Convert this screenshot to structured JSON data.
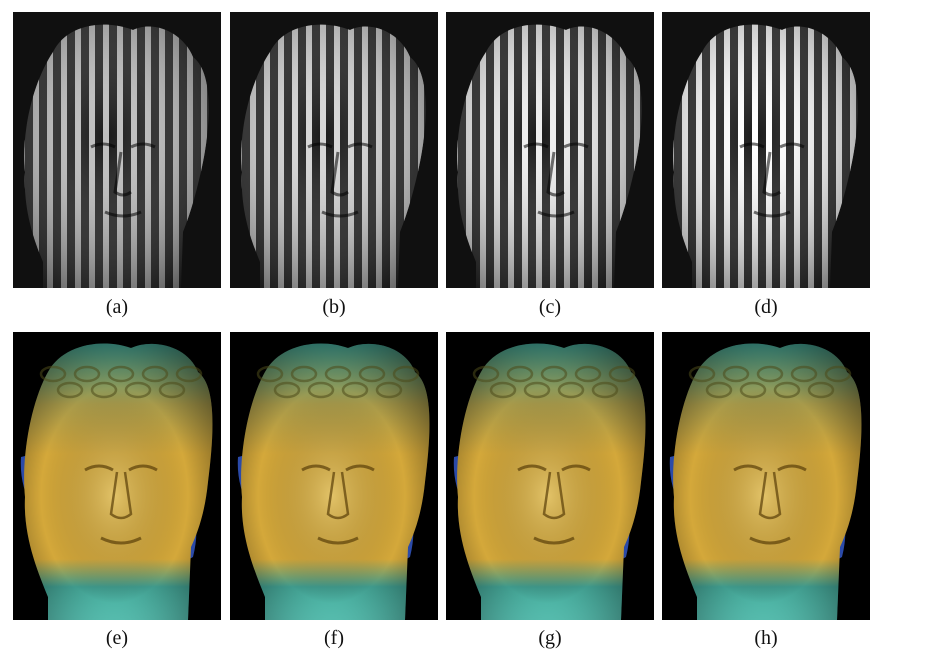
{
  "figure": {
    "row_top": {
      "panels": [
        {
          "caption": "(a)",
          "stripe_brightness": 0.55
        },
        {
          "caption": "(b)",
          "stripe_brightness": 0.72
        },
        {
          "caption": "(c)",
          "stripe_brightness": 0.88
        },
        {
          "caption": "(d)",
          "stripe_brightness": 1.0
        }
      ]
    },
    "row_bottom": {
      "panels": [
        {
          "caption": "(e)"
        },
        {
          "caption": "(f)"
        },
        {
          "caption": "(g)"
        },
        {
          "caption": "(h)"
        }
      ]
    }
  },
  "colors": {
    "background": "#ffffff",
    "fringe_bg": "#101010",
    "recon_bg": "#000000",
    "face_gold": "#d4a83a",
    "hair_olive": "#a89a4a",
    "hair_teal": "#3f9a8c",
    "side_blue": "#2b4aa8",
    "neck_cyan": "#5fd0c0"
  },
  "icons": {
    "fringe": "fringe-projection-head-image",
    "reconstruction": "height-map-head-image"
  }
}
